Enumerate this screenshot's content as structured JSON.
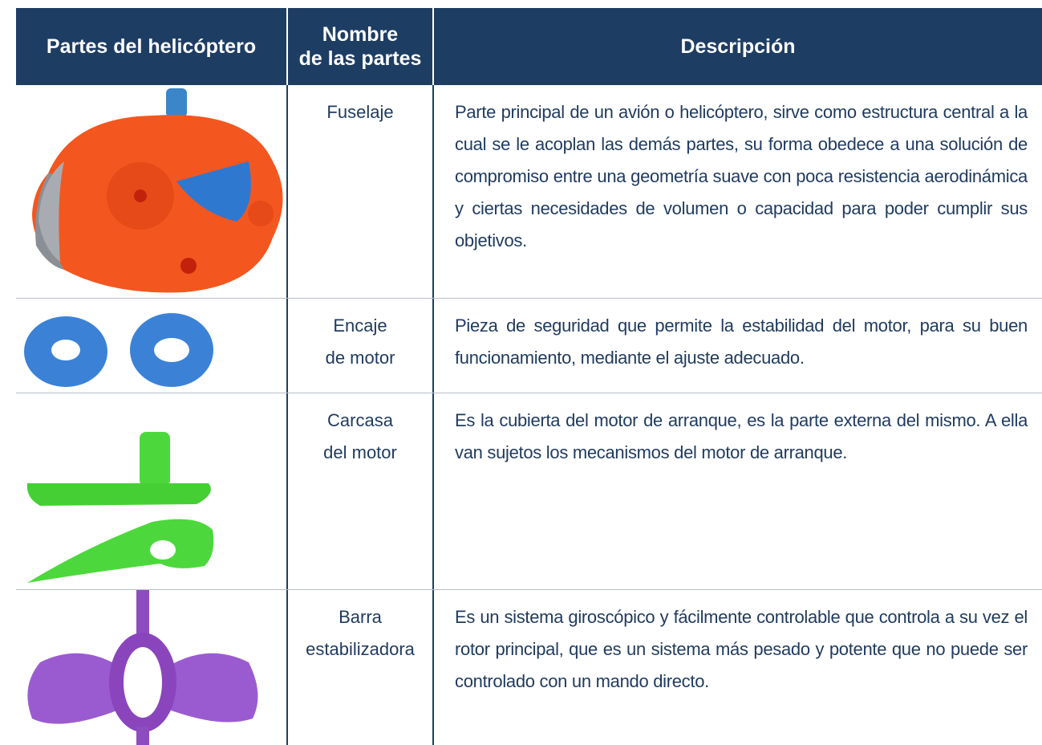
{
  "table": {
    "header": [
      "Partes del helicóptero",
      [
        "Nombre",
        "de las partes"
      ],
      "Descripción"
    ],
    "rows": [
      [
        [
          "Fuselaje"
        ],
        "Parte principal de un avión o helicóptero, sirve como estructura central a la cual se le acoplan las demás partes, su forma obedece a una solución de compromiso entre una geometría suave con poca resistencia aerodinámica y ciertas necesidades de volumen o capacidad para poder cumplir sus objetivos."
      ],
      [
        [
          "Encaje",
          "de motor"
        ],
        "Pieza de seguridad que permite la estabilidad del motor, para su buen funcionamiento, mediante el ajuste adecuado."
      ],
      [
        [
          "Carcasa",
          "del motor"
        ],
        "Es la cubierta del motor de arranque, es la parte externa del mismo. A ella van sujetos los mecanismos del motor de arranque."
      ],
      [
        [
          "Barra",
          "estabilizadora"
        ],
        "Es un sistema giroscópico y fácilmente controlable que controla a su vez el rotor principal, que es un sistema más pesado y potente que no puede ser controlado con un mando directo."
      ]
    ]
  }
}
